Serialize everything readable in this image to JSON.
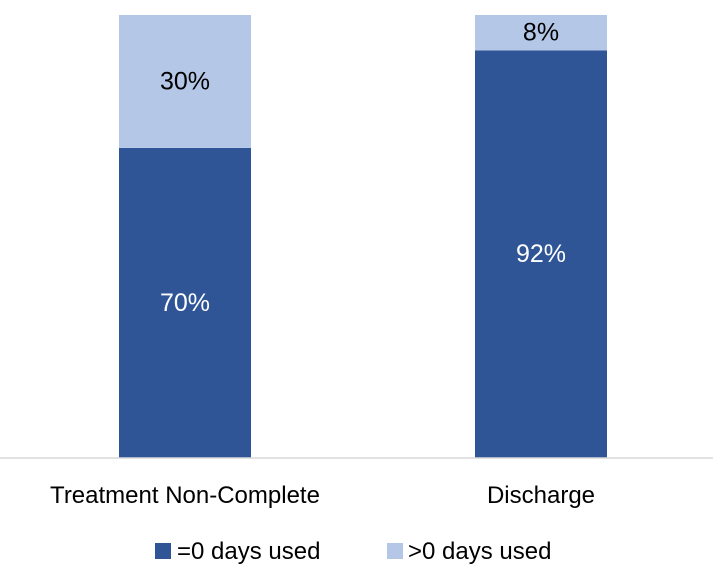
{
  "chart_data": {
    "type": "bar",
    "stacked": true,
    "percent_stacked": true,
    "categories": [
      "Treatment Non-Complete",
      "Discharge"
    ],
    "series": [
      {
        "name": "=0 days used",
        "values": [
          70,
          92
        ],
        "labels": [
          "70%",
          "92%"
        ],
        "color": "#2f5597",
        "label_color": "#ffffff"
      },
      {
        "name": ">0 days used",
        "values": [
          30,
          8
        ],
        "labels": [
          "30%",
          "8%"
        ],
        "color": "#b4c7e7",
        "label_color": "#000000"
      }
    ],
    "ylim": [
      0,
      100
    ],
    "grid": false,
    "legend": "bottom",
    "axis_color": "#d9d9d9"
  }
}
